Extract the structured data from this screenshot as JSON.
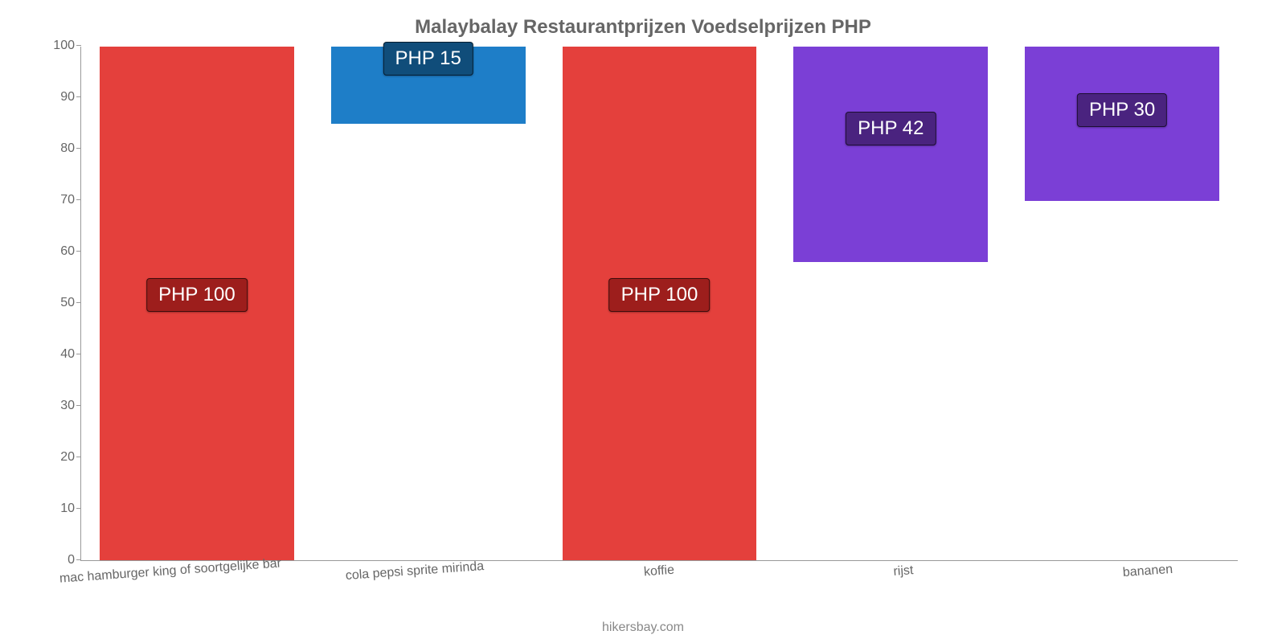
{
  "chart": {
    "type": "bar",
    "title": "Malaybalay Restaurantprijzen Voedselprijzen PHP",
    "title_fontsize": 24,
    "title_color": "#666666",
    "background_color": "#ffffff",
    "ylim_min": 0,
    "ylim_max": 100,
    "ytick_step": 10,
    "yticks": [
      0,
      10,
      20,
      30,
      40,
      50,
      60,
      70,
      80,
      90,
      100
    ],
    "ytick_fontsize": 16,
    "ytick_color": "#666666",
    "axis_color": "#999999",
    "bar_width_pct": 84,
    "categories": [
      "mac hamburger king of soortgelijke bar",
      "cola pepsi sprite mirinda",
      "koffie",
      "rijst",
      "bananen"
    ],
    "xlabel_fontsize": 16,
    "xlabel_color": "#666666",
    "xlabel_rotate_deg": -4,
    "values": [
      100,
      15,
      100,
      42,
      30
    ],
    "value_labels": [
      "PHP 100",
      "PHP 15",
      "PHP 100",
      "PHP 42",
      "PHP 30"
    ],
    "value_label_fontsize": 24,
    "value_label_color": "#ffffff",
    "bar_colors": [
      "#e4403c",
      "#1e7ec8",
      "#e4403c",
      "#7b3fd6",
      "#7b3fd6"
    ],
    "label_bg_colors": [
      "#9d1e1c",
      "#104d7a",
      "#9d1e1c",
      "#4a237f",
      "#4a237f"
    ],
    "label_pos": [
      "mid",
      "top",
      "mid",
      "inside-low",
      "inside-low"
    ],
    "credit": "hikersbay.com",
    "credit_fontsize": 16,
    "credit_color": "#888888"
  }
}
